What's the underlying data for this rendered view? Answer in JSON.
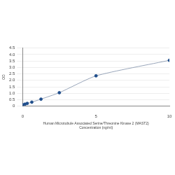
{
  "chart_data": {
    "type": "scatter",
    "xlabel": [
      "Human Microtubule Associated Serine/Threonine Kinase 2 (MAST2)",
      "Concentration (ng/ml)"
    ],
    "ylabel": "OD",
    "x": [
      0,
      0.156,
      0.312,
      0.625,
      1.25,
      2.5,
      5,
      10
    ],
    "values": [
      0.12,
      0.16,
      0.22,
      0.32,
      0.55,
      1.05,
      2.35,
      3.55
    ],
    "color": "#1f4e8c",
    "marker": "circle",
    "line_style": "solid",
    "xlim": [
      0,
      10
    ],
    "xticks": [
      0,
      5,
      10
    ],
    "ylim": [
      0,
      4.5
    ],
    "yticks": [
      0,
      0.5,
      1,
      1.5,
      2,
      2.5,
      3,
      3.5,
      4,
      4.5
    ],
    "grid": true
  }
}
